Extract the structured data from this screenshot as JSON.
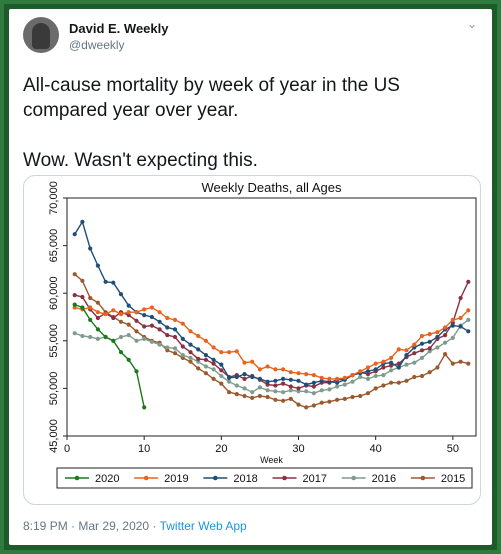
{
  "tweet": {
    "author_name": "David E. Weekly",
    "author_handle": "@dweekly",
    "text_line1": "All-cause mortality by week of year in the US compared year over year.",
    "text_line2": "Wow. Wasn't expecting this.",
    "time": "8:19 PM",
    "date": "Mar 29, 2020",
    "separator": "·",
    "source": "Twitter Web App",
    "menu_icon": "chevron-down-icon"
  },
  "chart_data": {
    "type": "line",
    "title": "Weekly Deaths, all Ages",
    "xlabel": "Week",
    "ylabel": "",
    "xlim": [
      0,
      53
    ],
    "ylim": [
      45000,
      70000
    ],
    "xticks": [
      0,
      10,
      20,
      30,
      40,
      50
    ],
    "yticks": [
      45000,
      50000,
      55000,
      60000,
      65000,
      70000
    ],
    "ytick_labels": [
      "45,000",
      "50,000",
      "55,000",
      "60,000",
      "65,000",
      "70,000"
    ],
    "legend_position": "bottom",
    "series": [
      {
        "name": "2020",
        "color": "#1a7a1a",
        "values": [
          58800,
          58500,
          57200,
          56200,
          55400,
          55000,
          53800,
          53000,
          51800,
          48000
        ]
      },
      {
        "name": "2019",
        "color": "#e8641e",
        "values": [
          58500,
          58300,
          58500,
          58000,
          57800,
          58200,
          57800,
          58000,
          58000,
          58300,
          58500,
          58000,
          57400,
          57200,
          56800,
          56000,
          55500,
          55000,
          54300,
          53800,
          53800,
          53900,
          52700,
          52800,
          52000,
          52300,
          52000,
          52000,
          51700,
          51600,
          51500,
          51400,
          51100,
          51000,
          51000,
          51100,
          51400,
          51800,
          52200,
          52600,
          52800,
          53200,
          54100,
          54000,
          54600,
          55500,
          55700,
          55900,
          56400,
          57200,
          57400,
          58200
        ]
      },
      {
        "name": "2018",
        "color": "#1f4e79",
        "values": [
          66200,
          67500,
          64700,
          62900,
          61200,
          61100,
          59900,
          58700,
          58000,
          57700,
          57500,
          57000,
          56400,
          56200,
          55200,
          54600,
          54100,
          53500,
          53000,
          52500,
          51100,
          51200,
          51500,
          51200,
          51000,
          50700,
          50800,
          51000,
          50900,
          50800,
          50400,
          50600,
          50800,
          50700,
          50600,
          50900,
          51400,
          51600,
          51800,
          52000,
          52600,
          52700,
          52200,
          53500,
          54300,
          54700,
          54900,
          55400,
          56200,
          56600,
          56500,
          56000
        ]
      },
      {
        "name": "2017",
        "color": "#8b3042",
        "values": [
          59800,
          59600,
          58300,
          57400,
          57900,
          57400,
          58000,
          57700,
          57100,
          56500,
          56600,
          56200,
          55600,
          55400,
          54400,
          53800,
          53100,
          53000,
          52600,
          51900,
          51200,
          51400,
          51000,
          51300,
          50900,
          50400,
          50300,
          50500,
          50200,
          50000,
          50300,
          50200,
          50600,
          50600,
          50900,
          51000,
          51400,
          51700,
          51500,
          51800,
          52200,
          52400,
          52600,
          53300,
          53700,
          54000,
          54200,
          55200,
          55600,
          56900,
          59500,
          61200
        ]
      },
      {
        "name": "2016",
        "color": "#7f9c8c",
        "values": [
          55800,
          55500,
          55400,
          55200,
          55400,
          55000,
          55400,
          55600,
          55000,
          55200,
          54900,
          54600,
          54300,
          54200,
          53500,
          53200,
          52800,
          52300,
          52000,
          51300,
          50700,
          50300,
          50000,
          49600,
          50100,
          49800,
          49700,
          49600,
          49800,
          49700,
          49700,
          49500,
          49800,
          49900,
          50200,
          50400,
          50700,
          51200,
          51000,
          51300,
          51400,
          51900,
          52200,
          52500,
          52700,
          53200,
          53900,
          54300,
          54800,
          55300,
          56600,
          57200
        ]
      },
      {
        "name": "2015",
        "color": "#9b5a2e",
        "values": [
          62000,
          61300,
          59500,
          59000,
          58000,
          57500,
          57000,
          56700,
          56000,
          55400,
          55000,
          54800,
          54000,
          53700,
          53200,
          52800,
          52100,
          51600,
          51000,
          50500,
          49600,
          49400,
          49200,
          49000,
          49200,
          49100,
          48800,
          48700,
          48900,
          48300,
          48000,
          48200,
          48500,
          48600,
          48800,
          48900,
          49100,
          49200,
          49500,
          50000,
          50300,
          50600,
          50600,
          50800,
          51200,
          51300,
          51700,
          52200,
          53600,
          52600,
          52800,
          52600
        ]
      }
    ]
  }
}
